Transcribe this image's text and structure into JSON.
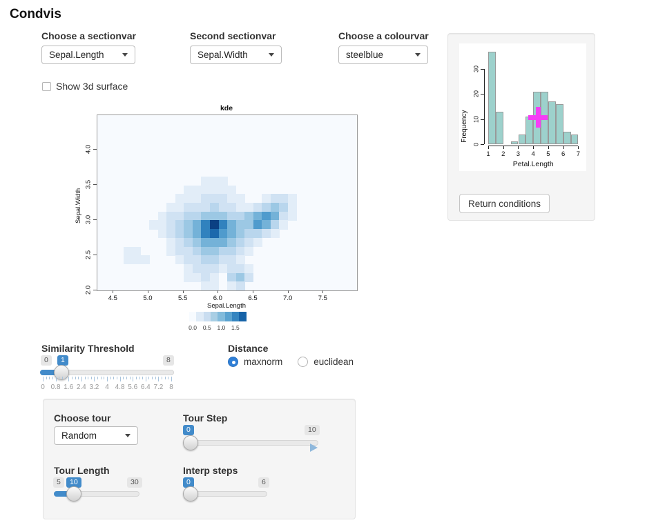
{
  "page": {
    "title": "Condvis"
  },
  "controls": {
    "sectionvar": {
      "label": "Choose a sectionvar",
      "value": "Sepal.Length"
    },
    "sectionvar2": {
      "label": "Second sectionvar",
      "value": "Sepal.Width"
    },
    "colourvar": {
      "label": "Choose a colourvar",
      "value": "steelblue"
    },
    "show3d": {
      "label": "Show 3d surface",
      "checked": false
    },
    "similarity": {
      "label": "Similarity Threshold",
      "min": "0",
      "value": "1",
      "max": "8",
      "grid_labels": [
        "0",
        "0.8",
        "1.6",
        "2.4",
        "3.2",
        "4",
        "4.8",
        "5.6",
        "6.4",
        "7.2",
        "8"
      ]
    },
    "distance": {
      "label": "Distance",
      "options": [
        {
          "label": "maxnorm",
          "selected": true
        },
        {
          "label": "euclidean",
          "selected": false
        }
      ]
    },
    "tour": {
      "choose": {
        "label": "Choose tour",
        "value": "Random"
      },
      "step": {
        "label": "Tour Step",
        "value": "0",
        "max": "10"
      },
      "length": {
        "label": "Tour Length",
        "min": "5",
        "value": "10",
        "max": "30"
      },
      "interp": {
        "label": "Interp steps",
        "value": "0",
        "max": "6"
      }
    },
    "return_button": "Return conditions"
  },
  "chart_data": [
    {
      "type": "heatmap",
      "title": "kde",
      "xlabel": "Sepal.Length",
      "ylabel": "Sepal.Width",
      "xlim": [
        4.27,
        7.98
      ],
      "ylim": [
        2.0,
        4.49
      ],
      "x_ticks": [
        "4.5",
        "5.0",
        "5.5",
        "6.0",
        "6.5",
        "7.0",
        "7.5"
      ],
      "y_ticks": [
        "2.0",
        "2.5",
        "3.0",
        "3.5",
        "4.0"
      ],
      "background": "#f7fafe",
      "palette": [
        "transparent",
        "#e2edf8",
        "#d0e2f3",
        "#b9d6ed",
        "#9cc8e4",
        "#74b2d8",
        "#4f9bcd",
        "#3182be",
        "#1c69ac",
        "#0b4083"
      ],
      "legend": {
        "labels": [
          "0.0",
          "0.5",
          "1.0",
          "1.5"
        ],
        "colors": [
          "#f7fbff",
          "#dfebf7",
          "#c9ddf0",
          "#a8cee4",
          "#82bbdb",
          "#5ba3d0",
          "#3585c0",
          "#1663a8"
        ]
      },
      "grid": {
        "cols": 30,
        "rows": 20,
        "values": [
          [
            0,
            0,
            0,
            0,
            0,
            0,
            0,
            0,
            0,
            0,
            0,
            0,
            0,
            0,
            0,
            0,
            0,
            0,
            0,
            0,
            0,
            0,
            0,
            0,
            0,
            0,
            0,
            0,
            0,
            0
          ],
          [
            0,
            0,
            0,
            0,
            0,
            0,
            0,
            0,
            0,
            0,
            0,
            0,
            0,
            0,
            0,
            0,
            0,
            0,
            0,
            0,
            0,
            0,
            0,
            0,
            0,
            0,
            0,
            0,
            0,
            0
          ],
          [
            0,
            0,
            0,
            0,
            0,
            0,
            0,
            0,
            0,
            0,
            0,
            0,
            0,
            0,
            0,
            0,
            0,
            0,
            0,
            0,
            0,
            0,
            0,
            0,
            0,
            0,
            0,
            0,
            0,
            0
          ],
          [
            0,
            0,
            0,
            0,
            0,
            0,
            0,
            0,
            0,
            0,
            0,
            0,
            0,
            0,
            0,
            0,
            0,
            0,
            0,
            0,
            0,
            0,
            0,
            0,
            0,
            0,
            0,
            0,
            0,
            0
          ],
          [
            0,
            0,
            0,
            0,
            0,
            0,
            0,
            0,
            0,
            0,
            0,
            0,
            0,
            0,
            0,
            0,
            0,
            0,
            0,
            0,
            0,
            0,
            0,
            0,
            0,
            0,
            0,
            0,
            0,
            0
          ],
          [
            0,
            0,
            0,
            0,
            0,
            0,
            0,
            0,
            0,
            0,
            0,
            0,
            0,
            0,
            0,
            0,
            0,
            0,
            0,
            0,
            0,
            0,
            0,
            0,
            0,
            0,
            0,
            0,
            0,
            0
          ],
          [
            0,
            0,
            0,
            0,
            0,
            0,
            0,
            0,
            0,
            0,
            0,
            0,
            0,
            0,
            0,
            0,
            0,
            0,
            0,
            0,
            0,
            0,
            0,
            0,
            0,
            0,
            0,
            0,
            0,
            0
          ],
          [
            0,
            0,
            0,
            0,
            0,
            0,
            0,
            0,
            0,
            0,
            0,
            0,
            1,
            1,
            1,
            0,
            0,
            0,
            0,
            0,
            0,
            0,
            0,
            0,
            0,
            0,
            0,
            0,
            0,
            0
          ],
          [
            0,
            0,
            0,
            0,
            0,
            0,
            0,
            0,
            0,
            0,
            1,
            1,
            1,
            1,
            1,
            1,
            0,
            0,
            0,
            0,
            0,
            0,
            0,
            0,
            0,
            0,
            0,
            0,
            0,
            0
          ],
          [
            0,
            0,
            0,
            0,
            0,
            0,
            0,
            0,
            0,
            1,
            1,
            1,
            2,
            2,
            2,
            1,
            1,
            0,
            0,
            1,
            2,
            2,
            1,
            0,
            0,
            0,
            0,
            0,
            0,
            0
          ],
          [
            0,
            0,
            0,
            0,
            0,
            0,
            0,
            0,
            1,
            1,
            2,
            2,
            2,
            3,
            2,
            2,
            1,
            1,
            2,
            3,
            4,
            3,
            1,
            0,
            0,
            0,
            0,
            0,
            0,
            0
          ],
          [
            0,
            0,
            0,
            0,
            0,
            0,
            0,
            1,
            2,
            2,
            3,
            3,
            4,
            4,
            4,
            3,
            3,
            4,
            5,
            6,
            5,
            2,
            1,
            0,
            0,
            0,
            0,
            0,
            0,
            0
          ],
          [
            0,
            0,
            0,
            0,
            0,
            0,
            1,
            1,
            2,
            3,
            4,
            5,
            7,
            9,
            7,
            5,
            4,
            4,
            6,
            5,
            3,
            1,
            0,
            0,
            0,
            0,
            0,
            0,
            0,
            0
          ],
          [
            0,
            0,
            0,
            0,
            0,
            0,
            0,
            1,
            2,
            3,
            4,
            5,
            7,
            8,
            6,
            5,
            4,
            3,
            3,
            2,
            1,
            0,
            0,
            0,
            0,
            0,
            0,
            0,
            0,
            0
          ],
          [
            0,
            0,
            0,
            0,
            0,
            0,
            0,
            0,
            1,
            2,
            3,
            4,
            5,
            5,
            5,
            4,
            3,
            2,
            1,
            0,
            0,
            0,
            0,
            0,
            0,
            0,
            0,
            0,
            0,
            0
          ],
          [
            0,
            0,
            0,
            1,
            1,
            0,
            0,
            0,
            1,
            2,
            2,
            3,
            4,
            4,
            3,
            3,
            2,
            1,
            0,
            0,
            0,
            0,
            0,
            0,
            0,
            0,
            0,
            0,
            0,
            0
          ],
          [
            0,
            0,
            0,
            1,
            1,
            1,
            0,
            0,
            0,
            1,
            2,
            2,
            3,
            3,
            2,
            2,
            1,
            0,
            0,
            0,
            0,
            0,
            0,
            0,
            0,
            0,
            0,
            0,
            0,
            0
          ],
          [
            0,
            0,
            0,
            0,
            0,
            0,
            0,
            0,
            0,
            0,
            1,
            2,
            2,
            2,
            1,
            2,
            2,
            1,
            0,
            0,
            0,
            0,
            0,
            0,
            0,
            0,
            0,
            0,
            0,
            0
          ],
          [
            0,
            0,
            0,
            0,
            0,
            0,
            0,
            0,
            0,
            0,
            1,
            1,
            2,
            1,
            0,
            3,
            4,
            2,
            0,
            0,
            0,
            0,
            0,
            0,
            0,
            0,
            0,
            0,
            0,
            0
          ],
          [
            0,
            0,
            0,
            0,
            0,
            0,
            0,
            0,
            0,
            0,
            0,
            0,
            1,
            1,
            0,
            1,
            2,
            0,
            0,
            0,
            0,
            0,
            0,
            0,
            0,
            0,
            0,
            0,
            0,
            0
          ]
        ]
      }
    },
    {
      "type": "bar",
      "xlabel": "Petal.Length",
      "ylabel": "Frequency",
      "bin_start": 1.0,
      "bin_width": 0.5,
      "values": [
        37,
        13,
        0,
        1,
        4,
        11,
        21,
        21,
        17,
        16,
        5,
        4
      ],
      "x_ticks": [
        1,
        2,
        3,
        4,
        5,
        6,
        7
      ],
      "y_ticks": [
        0,
        10,
        20,
        30
      ],
      "ylim": [
        0,
        40
      ],
      "bar_color": "#9dd1cc",
      "bar_border": "#999999",
      "marker": {
        "x": 4.33,
        "y": 10.7,
        "color": "#f53df5"
      }
    }
  ]
}
